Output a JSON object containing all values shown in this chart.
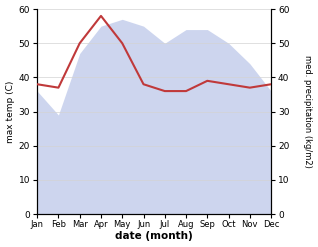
{
  "months": [
    "Jan",
    "Feb",
    "Mar",
    "Apr",
    "May",
    "Jun",
    "Jul",
    "Aug",
    "Sep",
    "Oct",
    "Nov",
    "Dec"
  ],
  "temp": [
    38,
    37,
    50,
    58,
    50,
    38,
    36,
    36,
    39,
    38,
    37,
    38
  ],
  "precip": [
    36,
    29,
    47,
    55,
    57,
    55,
    50,
    54,
    54,
    50,
    44,
    36
  ],
  "temp_color": "#c0393a",
  "precip_fill_color": "#b8c4e8",
  "precip_line_color": "#b8c4e8",
  "ylim_left": [
    0,
    60
  ],
  "ylim_right": [
    0,
    60
  ],
  "xlabel": "date (month)",
  "ylabel_left": "max temp (C)",
  "ylabel_right": "med. precipitation (kg/m2)",
  "bg_color": "#f0f0f0",
  "yticks": [
    0,
    10,
    20,
    30,
    40,
    50,
    60
  ]
}
